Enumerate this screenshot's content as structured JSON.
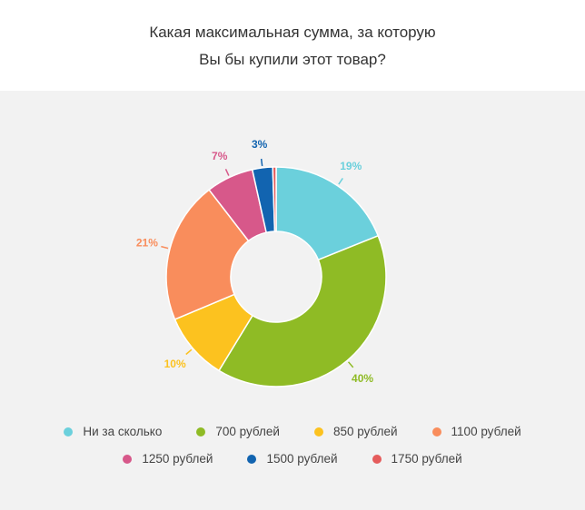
{
  "header": {
    "title_line_1": "Какая максимальная сумма, за которую",
    "title_line_2": "Вы бы купили этот товар?"
  },
  "chart_data": {
    "type": "pie",
    "title": "Какая максимальная сумма, за которую Вы бы купили этот товар?",
    "donut": true,
    "legend_position": "bottom",
    "series": [
      {
        "name": "Ни за сколько",
        "value": 19,
        "label": "19%",
        "color": "#6bd0dc"
      },
      {
        "name": "700 рублей",
        "value": 40,
        "label": "40%",
        "color": "#8fbb25"
      },
      {
        "name": "850 рублей",
        "value": 10,
        "label": "10%",
        "color": "#fcc21f"
      },
      {
        "name": "1100 рублей",
        "value": 21,
        "label": "21%",
        "color": "#f98d5c"
      },
      {
        "name": "1250 рублей",
        "value": 7,
        "label": "7%",
        "color": "#d7588a"
      },
      {
        "name": "1500 рублей",
        "value": 3,
        "label": "3%",
        "color": "#1264b0"
      },
      {
        "name": "1750 рублей",
        "value": 0.5,
        "label": "",
        "color": "#e55c5c"
      }
    ]
  }
}
